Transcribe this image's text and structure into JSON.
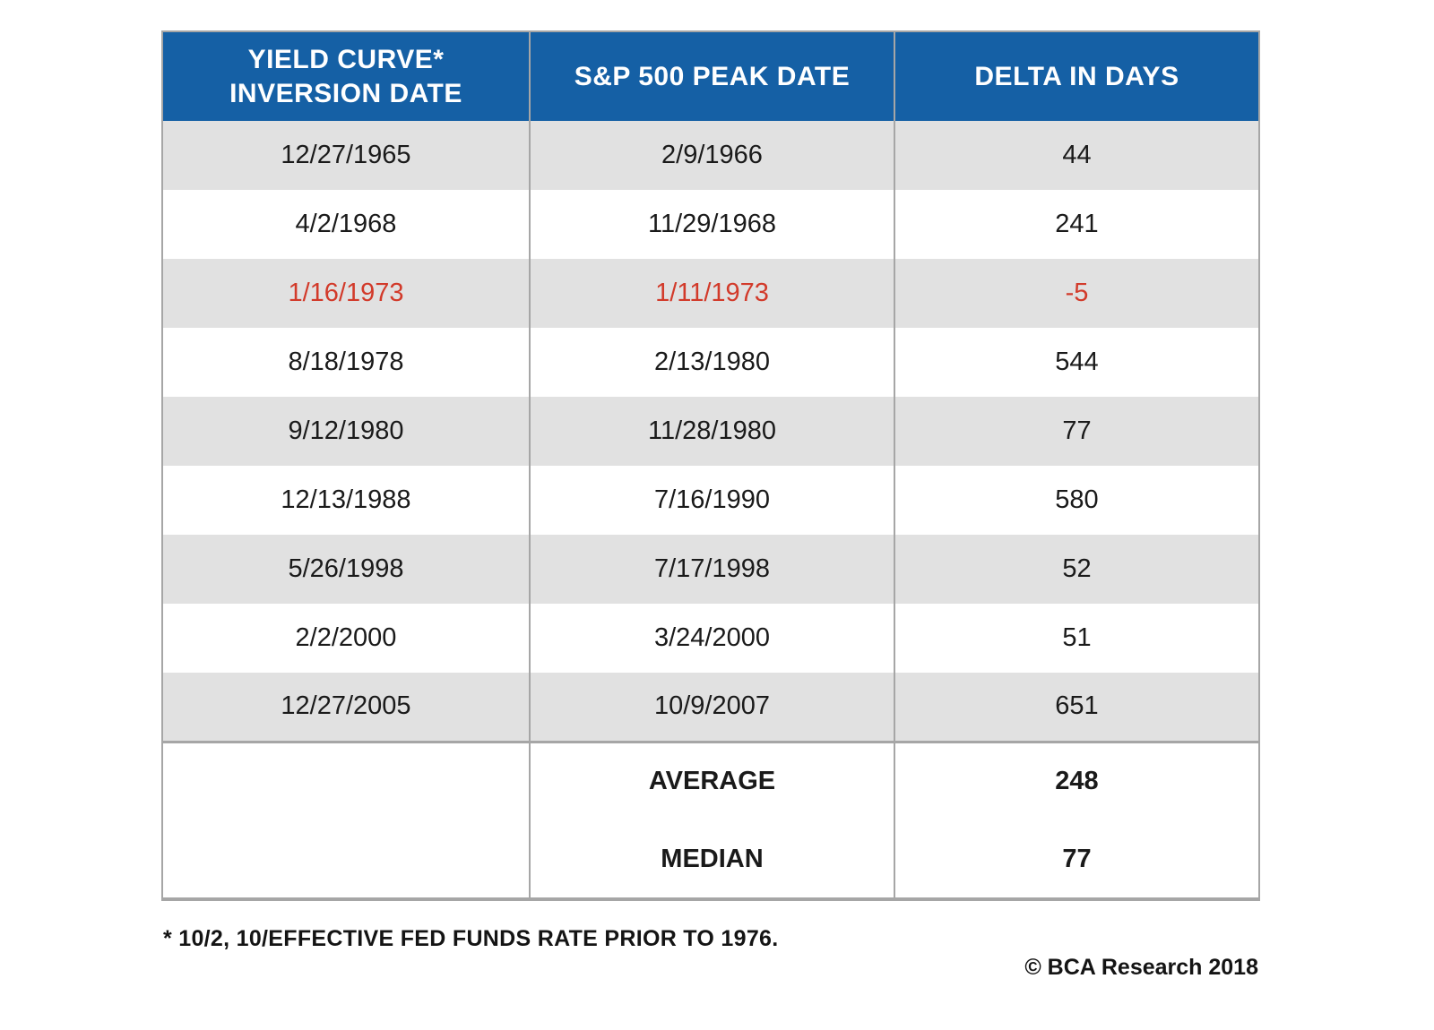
{
  "table": {
    "header": {
      "col1_line1": "YIELD CURVE*",
      "col1_line2": "INVERSION DATE",
      "col2": "S&P 500 PEAK DATE",
      "col3": "DELTA IN DAYS"
    },
    "rows": [
      {
        "inversion_date": "12/27/1965",
        "peak_date": "2/9/1966",
        "delta_days": "44",
        "highlight": false
      },
      {
        "inversion_date": "4/2/1968",
        "peak_date": "11/29/1968",
        "delta_days": "241",
        "highlight": false
      },
      {
        "inversion_date": "1/16/1973",
        "peak_date": "1/11/1973",
        "delta_days": "-5",
        "highlight": true
      },
      {
        "inversion_date": "8/18/1978",
        "peak_date": "2/13/1980",
        "delta_days": "544",
        "highlight": false
      },
      {
        "inversion_date": "9/12/1980",
        "peak_date": "11/28/1980",
        "delta_days": "77",
        "highlight": false
      },
      {
        "inversion_date": "12/13/1988",
        "peak_date": "7/16/1990",
        "delta_days": "580",
        "highlight": false
      },
      {
        "inversion_date": "5/26/1998",
        "peak_date": "7/17/1998",
        "delta_days": "52",
        "highlight": false
      },
      {
        "inversion_date": "2/2/2000",
        "peak_date": "3/24/2000",
        "delta_days": "51",
        "highlight": false
      },
      {
        "inversion_date": "12/27/2005",
        "peak_date": "10/9/2007",
        "delta_days": "651",
        "highlight": false
      }
    ],
    "summary": [
      {
        "label": "AVERAGE",
        "value": "248"
      },
      {
        "label": "MEDIAN",
        "value": "77"
      }
    ]
  },
  "footnote": "* 10/2, 10/EFFECTIVE FED FUNDS RATE PRIOR TO 1976.",
  "credit": "© BCA Research 2018",
  "colors": {
    "header_bg": "#1560a5",
    "row_alt": "#e1e1e1",
    "highlight_text": "#d23a2a",
    "border": "#a6a6a6",
    "text": "#1a1a1a"
  },
  "chart_data": {
    "type": "table",
    "title": "",
    "columns": [
      "YIELD CURVE* INVERSION DATE",
      "S&P 500 PEAK DATE",
      "DELTA IN DAYS"
    ],
    "rows": [
      [
        "12/27/1965",
        "2/9/1966",
        44
      ],
      [
        "4/2/1968",
        "11/29/1968",
        241
      ],
      [
        "1/16/1973",
        "1/11/1973",
        -5
      ],
      [
        "8/18/1978",
        "2/13/1980",
        544
      ],
      [
        "9/12/1980",
        "11/28/1980",
        77
      ],
      [
        "12/13/1988",
        "7/16/1990",
        580
      ],
      [
        "5/26/1998",
        "7/17/1998",
        52
      ],
      [
        "2/2/2000",
        "3/24/2000",
        51
      ],
      [
        "12/27/2005",
        "10/9/2007",
        651
      ]
    ],
    "highlighted_row_index": 2,
    "summary": {
      "AVERAGE": 248,
      "MEDIAN": 77
    },
    "footnote": "* 10/2, 10/EFFECTIVE FED FUNDS RATE PRIOR TO 1976.",
    "source": "© BCA Research 2018"
  }
}
